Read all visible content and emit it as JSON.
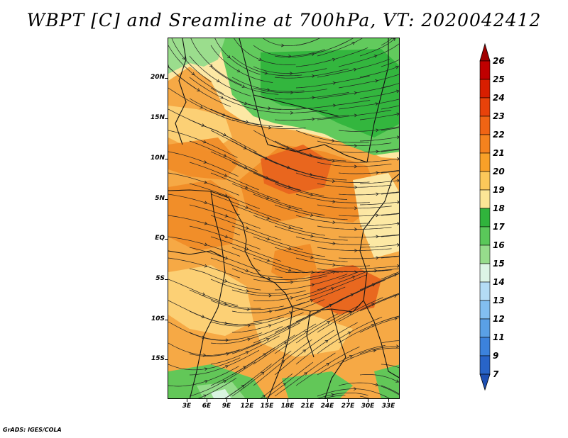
{
  "title": "WBPT [C] and Sreamline at 700hPa, VT: 2020042412",
  "credit": "GrADS: IGES/COLA",
  "lat_labels": [
    "20N",
    "15N",
    "10N",
    "5N",
    "EQ",
    "5S",
    "10S",
    "15S"
  ],
  "lon_labels": [
    "3E",
    "6E",
    "9E",
    "12E",
    "15E",
    "18E",
    "21E",
    "24E",
    "27E",
    "30E",
    "33E"
  ],
  "colorbar": {
    "labels": [
      "26",
      "25",
      "24",
      "23",
      "22",
      "21",
      "20",
      "19",
      "18",
      "17",
      "16",
      "15",
      "14",
      "13",
      "12",
      "11",
      "9",
      "7"
    ],
    "colors": [
      "#c00000",
      "#d81e00",
      "#e8420a",
      "#f06414",
      "#f5821e",
      "#f8a028",
      "#fcc85a",
      "#fce696",
      "#30b43c",
      "#5ac85a",
      "#96dc8c",
      "#dcf5e6",
      "#b4dcf5",
      "#82bef0",
      "#5aa0e6",
      "#3c82dc",
      "#2864c8"
    ],
    "arrow_colors": {
      "top": "#a00000",
      "bottom": "#1e50b4"
    }
  },
  "map_colors": {
    "very_warm": "#e8641e",
    "warm": "#f08c28",
    "mild": "#f5aa46",
    "cool": "#fcd278",
    "pale": "#fcebaa",
    "green_dark": "#30b43c",
    "green": "#5ac85a",
    "green_light": "#96dc8c",
    "cyan_pale": "#dcf5e6"
  }
}
